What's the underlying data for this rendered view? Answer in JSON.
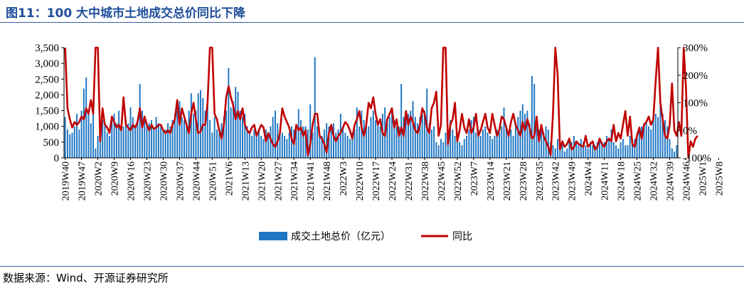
{
  "header": {
    "title": "图11：100 大中城市土地成交总价同比下降"
  },
  "footer": {
    "source": "数据来源：Wind、开源证券研究所"
  },
  "colors": {
    "bars": "#1f77c4",
    "line": "#c00000",
    "title": "#1f4e9a",
    "rule": "#3a5fa0"
  },
  "chart_data": {
    "type": "bar+line",
    "title": "",
    "xlabel": "",
    "ylabel": "",
    "y_left": {
      "ylim": [
        0,
        3500
      ],
      "ticks": [
        "0",
        "500",
        "1,000",
        "1,500",
        "2,000",
        "2,500",
        "3,000",
        "3,500"
      ]
    },
    "y_right": {
      "ylim": [
        -100,
        300
      ],
      "ticks": [
        "-100%",
        "0%",
        "100%",
        "200%",
        "300%"
      ]
    },
    "x_tick_labels": [
      "2019W40",
      "2019W47",
      "2020W2",
      "2020W9",
      "2020W16",
      "2020W23",
      "2020W30",
      "2020W37",
      "2020W44",
      "2020W51",
      "2021W6",
      "2021W13",
      "2021W20",
      "2021W27",
      "2021W34",
      "2021W41",
      "2021W48",
      "2022W3",
      "2022W10",
      "2022W17",
      "2022W24",
      "2022W31",
      "2022W38",
      "2022W45",
      "2022W52",
      "2023W7",
      "2023W14",
      "2023W21",
      "2023W28",
      "2023W35",
      "2023W42",
      "2023W49",
      "2024W4",
      "2024W11",
      "2024W18",
      "2024W25",
      "2024W32",
      "2024W39",
      "2024W46",
      "2025W1",
      "2025W8"
    ],
    "legend_position": "bottom",
    "grid": false,
    "series": [
      {
        "name": "成交土地总价（亿元）",
        "type": "bar",
        "axis": "left",
        "values": [
          1300,
          900,
          750,
          800,
          1000,
          1400,
          900,
          1500,
          2200,
          2550,
          1500,
          1100,
          1800,
          300,
          700,
          900,
          1200,
          1000,
          800,
          700,
          1200,
          1400,
          1100,
          1500,
          900,
          1000,
          1200,
          1100,
          1600,
          1300,
          1000,
          1200,
          2350,
          1500,
          1200,
          1000,
          1100,
          1200,
          900,
          1300,
          1100,
          1000,
          900,
          900,
          1100,
          1000,
          1200,
          1400,
          1500,
          1800,
          1300,
          1200,
          1000,
          1500,
          2050,
          1400,
          1500,
          2050,
          2150,
          1900,
          1500,
          1800,
          1200,
          800,
          1300,
          900,
          800,
          1100,
          1300,
          1500,
          2850,
          1600,
          1800,
          2250,
          2100,
          1500,
          1300,
          1400,
          1000,
          800,
          700,
          900,
          800,
          900,
          700,
          600,
          900,
          800,
          1000,
          1300,
          1500,
          1100,
          900,
          800,
          700,
          600,
          800,
          1000,
          900,
          900,
          1550,
          1200,
          1000,
          1000,
          900,
          1700,
          800,
          3200,
          1000,
          800,
          700,
          900,
          1100,
          1000,
          900,
          1100,
          800,
          900,
          1400,
          1000,
          800,
          700,
          600,
          800,
          900,
          1600,
          1000,
          1500,
          1200,
          1000,
          1000,
          1300,
          1500,
          1200,
          1100,
          1000,
          1400,
          1600,
          1100,
          1300,
          1600,
          1200,
          1000,
          1000,
          2350,
          1300,
          1300,
          1400,
          1500,
          1800,
          1300,
          1100,
          1300,
          1400,
          1500,
          2200,
          1100,
          900,
          1000,
          500,
          400,
          600,
          500,
          800,
          700,
          1200,
          900,
          700,
          600,
          500,
          400,
          600,
          700,
          900,
          1200,
          1300,
          800,
          900,
          700,
          900,
          1000,
          800,
          700,
          600,
          700,
          900,
          800,
          1000,
          1600,
          1000,
          800,
          900,
          700,
          1100,
          1300,
          1500,
          1700,
          1400,
          1500,
          1100,
          2600,
          2350,
          1000,
          900,
          900,
          800,
          1000,
          900,
          500,
          400,
          300,
          600,
          400,
          500,
          200,
          300,
          600,
          500,
          700,
          500,
          400,
          600,
          500,
          400,
          300,
          500,
          400,
          400,
          500,
          600,
          500,
          500,
          700,
          600,
          900,
          500,
          400,
          300,
          500,
          600,
          400,
          400,
          700,
          500,
          600,
          800,
          900,
          1000,
          1100,
          1100,
          1000,
          900,
          1200,
          1400,
          1300,
          1800,
          1400,
          1200,
          1000,
          600,
          300,
          200,
          400
        ]
      },
      {
        "name": "同比",
        "type": "line",
        "axis": "right",
        "values": [
          300,
          80,
          40,
          10,
          30,
          20,
          30,
          50,
          40,
          80,
          60,
          110,
          60,
          300,
          300,
          -40,
          80,
          20,
          10,
          -10,
          50,
          30,
          10,
          20,
          0,
          120,
          20,
          10,
          0,
          20,
          10,
          30,
          80,
          10,
          50,
          20,
          0,
          20,
          5,
          10,
          20,
          20,
          0,
          -10,
          0,
          -10,
          20,
          40,
          110,
          20,
          80,
          50,
          20,
          -10,
          60,
          100,
          40,
          -10,
          -5,
          20,
          20,
          100,
          300,
          300,
          60,
          40,
          0,
          -30,
          20,
          120,
          160,
          120,
          90,
          40,
          70,
          40,
          80,
          20,
          0,
          -10,
          10,
          20,
          -20,
          0,
          20,
          10,
          -40,
          -10,
          -30,
          -50,
          -60,
          -40,
          -10,
          80,
          50,
          30,
          10,
          -30,
          -50,
          20,
          0,
          10,
          -20,
          0,
          -90,
          -50,
          20,
          60,
          60,
          -20,
          -30,
          -50,
          -80,
          -10,
          20,
          -20,
          -40,
          -20,
          -10,
          10,
          30,
          20,
          0,
          -30,
          20,
          40,
          70,
          10,
          -20,
          20,
          100,
          80,
          120,
          60,
          20,
          40,
          -10,
          -20,
          40,
          60,
          80,
          10,
          40,
          -20,
          10,
          -20,
          70,
          20,
          50,
          30,
          0,
          -10,
          20,
          80,
          60,
          10,
          -10,
          80,
          100,
          140,
          -20,
          20,
          300,
          300,
          -50,
          20,
          40,
          100,
          -40,
          0,
          60,
          10,
          -10,
          40,
          -10,
          10,
          60,
          -20,
          0,
          30,
          60,
          10,
          -10,
          60,
          20,
          -20,
          0,
          50,
          40,
          10,
          -20,
          30,
          60,
          20,
          0,
          -20,
          30,
          0,
          40,
          10,
          -30,
          -20,
          50,
          -40,
          20,
          -20,
          -40,
          -60,
          -90,
          60,
          300,
          200,
          -70,
          -40,
          -60,
          -50,
          -30,
          -70,
          -60,
          -40,
          -50,
          -55,
          -60,
          -20,
          -60,
          -50,
          -40,
          -70,
          -60,
          -30,
          -50,
          -60,
          -40,
          -30,
          -40,
          20,
          -40,
          -10,
          -30,
          20,
          70,
          -20,
          50,
          -50,
          -60,
          -20,
          10,
          -30,
          20,
          30,
          50,
          20,
          40,
          180,
          300,
          100,
          40,
          -20,
          -30,
          20,
          170,
          0,
          -20,
          30,
          -20,
          300,
          150,
          -100,
          -40,
          -60,
          -30,
          -20
        ]
      }
    ]
  }
}
